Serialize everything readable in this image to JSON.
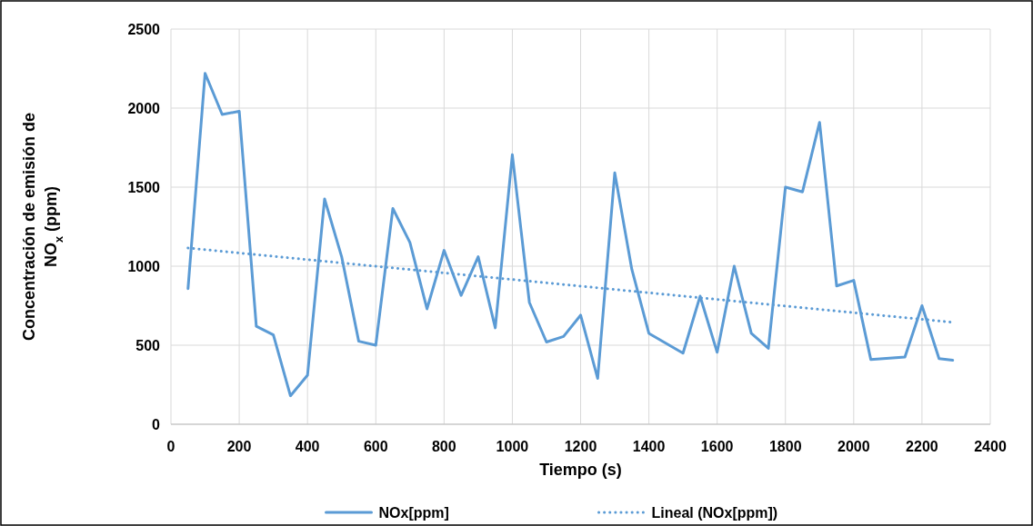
{
  "chart_data": {
    "type": "line",
    "xlabel": "Tiempo (s)",
    "ylabel": "Concentración de emisión de NO$_{x}$ (ppm)",
    "xlim": [
      0,
      2400
    ],
    "xticks": [
      0,
      200,
      400,
      600,
      800,
      1000,
      1200,
      1400,
      1600,
      1800,
      2000,
      2200,
      2400
    ],
    "ylim": [
      0,
      2500
    ],
    "yticks": [
      0,
      500,
      1000,
      1500,
      2000,
      2500
    ],
    "grid": true,
    "legend": "bottom",
    "marker": "none",
    "series": [
      {
        "name": "NOx[ppm]",
        "color": "#5b9bd5",
        "line_style": "solid",
        "x": [
          50,
          100,
          150,
          200,
          250,
          300,
          350,
          400,
          450,
          500,
          550,
          600,
          650,
          700,
          750,
          800,
          850,
          900,
          950,
          1000,
          1050,
          1100,
          1150,
          1200,
          1250,
          1300,
          1350,
          1400,
          1500,
          1550,
          1600,
          1650,
          1700,
          1750,
          1800,
          1850,
          1900,
          1950,
          2000,
          2050,
          2150,
          2200,
          2250,
          2290
        ],
        "values": [
          858,
          2220,
          1960,
          1980,
          620,
          565,
          180,
          310,
          1425,
          1060,
          525,
          500,
          1365,
          1150,
          730,
          1100,
          815,
          1060,
          610,
          1705,
          770,
          520,
          555,
          690,
          290,
          1590,
          980,
          575,
          450,
          810,
          455,
          1000,
          575,
          480,
          1500,
          1470,
          1910,
          875,
          910,
          410,
          425,
          750,
          415,
          405
        ]
      },
      {
        "name": "Lineal (NOx[ppm])",
        "color": "#5b9bd5",
        "line_style": "dotted",
        "x": [
          50,
          2290
        ],
        "values": [
          1115,
          645
        ]
      }
    ]
  }
}
